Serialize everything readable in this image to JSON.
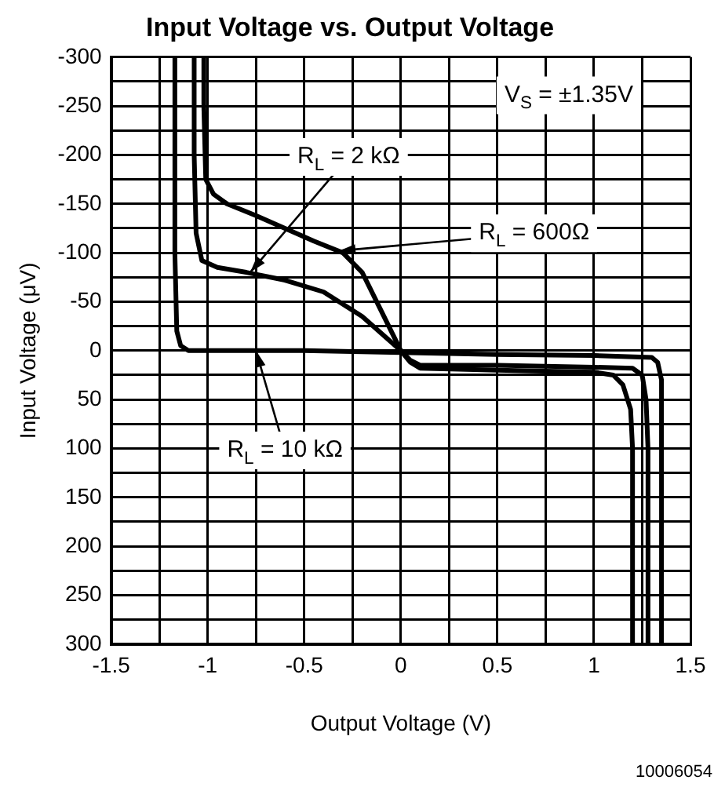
{
  "chart_data": {
    "type": "line",
    "title": "Input Voltage vs. Output Voltage",
    "xlabel": "Output Voltage (V)",
    "ylabel": "Input Voltage (μV)",
    "xlim": [
      -1.5,
      1.5
    ],
    "xticks": [
      -1.5,
      {
        "value": -1.25,
        "label": null
      },
      -1,
      {
        "value": -0.75,
        "label": null
      },
      -0.5,
      {
        "value": -0.25,
        "label": null
      },
      0,
      {
        "value": 0.25,
        "label": null
      },
      0.5,
      {
        "value": 0.75,
        "label": null
      },
      1,
      {
        "value": 1.25,
        "label": null
      },
      1.5
    ],
    "ylim": [
      300,
      -300
    ],
    "yticks": [
      -300,
      {
        "value": -275,
        "label": null
      },
      -250,
      {
        "value": -225,
        "label": null
      },
      -200,
      {
        "value": -175,
        "label": null
      },
      -150,
      {
        "value": -125,
        "label": null
      },
      -100,
      {
        "value": -75,
        "label": null
      },
      -50,
      {
        "value": -25,
        "label": null
      },
      0,
      {
        "value": 25,
        "label": null
      },
      50,
      {
        "value": 75,
        "label": null
      },
      100,
      {
        "value": 125,
        "label": null
      },
      150,
      {
        "value": 175,
        "label": null
      },
      200,
      {
        "value": 225,
        "label": null
      },
      250,
      {
        "value": 275,
        "label": null
      },
      300
    ],
    "grid": true,
    "legend": false,
    "marker": "none",
    "line_style": "solid",
    "series": [
      {
        "color": "#000000",
        "x": [
          -1.02,
          -1.02,
          -1.01,
          -0.97,
          -0.9,
          -0.75,
          -0.6,
          -0.45,
          -0.3,
          -0.2,
          -0.1,
          0,
          0.05,
          0.1,
          0.5,
          1.0,
          1.1,
          1.15,
          1.19,
          1.2,
          1.2
        ],
        "values": [
          -300,
          -250,
          -175,
          -160,
          -150,
          -138,
          -125,
          -112,
          -100,
          -80,
          -40,
          0,
          12,
          18,
          20,
          22,
          25,
          35,
          60,
          100,
          300
        ]
      },
      {
        "color": "#000000",
        "x": [
          -1.07,
          -1.07,
          -1.06,
          -1.03,
          -0.95,
          -0.8,
          -0.6,
          -0.4,
          -0.2,
          0,
          0.05,
          0.1,
          0.5,
          1.0,
          1.2,
          1.25,
          1.27,
          1.28,
          1.28
        ],
        "values": [
          -300,
          -200,
          -120,
          -92,
          -85,
          -80,
          -72,
          -60,
          -35,
          0,
          10,
          15,
          15,
          17,
          18,
          25,
          50,
          100,
          300
        ]
      },
      {
        "color": "#000000",
        "x": [
          -1.17,
          -1.17,
          -1.16,
          -1.14,
          -1.1,
          -1.0,
          -0.5,
          0,
          0.5,
          1.0,
          1.3,
          1.33,
          1.35,
          1.35
        ],
        "values": [
          -300,
          -100,
          -20,
          -5,
          0,
          0,
          0,
          2,
          4,
          5,
          7,
          12,
          30,
          300
        ]
      }
    ],
    "annotations": [
      {
        "text": "R$_{L}$ = 2 kΩ",
        "x": -0.78,
        "y": -80
      },
      {
        "text": "R$_{L}$ = 600Ω",
        "x": -0.32,
        "y": -102
      },
      {
        "text": "R$_{L}$ = 10 kΩ",
        "x": -0.75,
        "y": 0
      },
      "V$_{S}$ = ±1.35V",
      "10006054"
    ]
  }
}
